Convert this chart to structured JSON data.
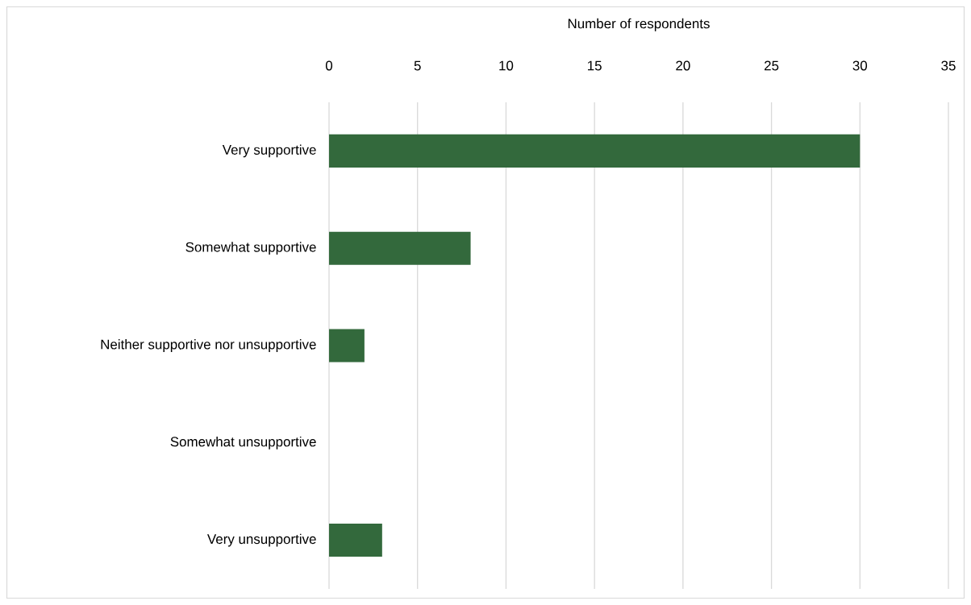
{
  "chart_data": {
    "type": "bar",
    "orientation": "horizontal",
    "xlabel": "Number of respondents",
    "categories": [
      "Very supportive",
      "Somewhat supportive",
      "Neither supportive nor unsupportive",
      "Somewhat unsupportive",
      "Very unsupportive"
    ],
    "values": [
      30,
      8,
      2,
      0,
      3
    ],
    "color": "#33693c",
    "xlim": [
      0,
      35
    ],
    "xticks": [
      0,
      5,
      10,
      15,
      20,
      25,
      30,
      35
    ],
    "grid": "x"
  }
}
